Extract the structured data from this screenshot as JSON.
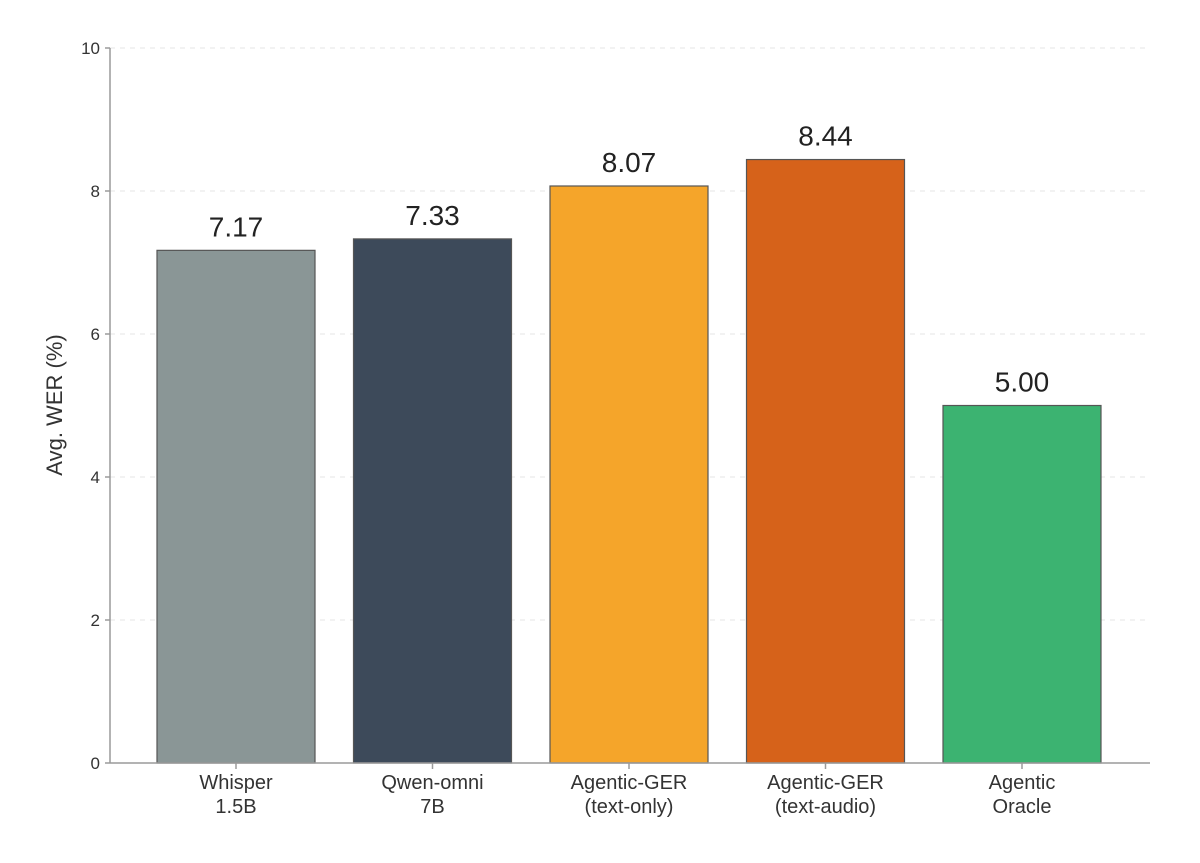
{
  "chart_data": {
    "type": "bar",
    "categories": [
      [
        "Whisper",
        "1.5B"
      ],
      [
        "Qwen-omni",
        "7B"
      ],
      [
        "Agentic-GER",
        "(text-only)"
      ],
      [
        "Agentic-GER",
        "(text-audio)"
      ],
      [
        "Agentic",
        "Oracle"
      ]
    ],
    "values": [
      7.17,
      7.33,
      8.07,
      8.44,
      5.0
    ],
    "value_labels": [
      "7.17",
      "7.33",
      "8.07",
      "8.44",
      "5.00"
    ],
    "colors": [
      "#8a9696",
      "#3d4a5a",
      "#f5a52a",
      "#d6621a",
      "#3cb371"
    ],
    "title": "",
    "xlabel": "",
    "ylabel": "Avg. WER (%)",
    "ylim": [
      0,
      10
    ],
    "yticks": [
      "0",
      "2",
      "4",
      "6",
      "8",
      "10"
    ],
    "grid": true,
    "legend": "none"
  }
}
